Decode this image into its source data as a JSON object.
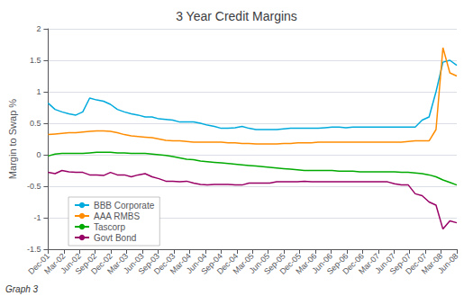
{
  "chart_data": {
    "type": "line",
    "title": "3 Year Credit Margins",
    "ylabel": "Margin to Swap %",
    "annotations": [
      "Graph 3"
    ],
    "x": [
      0,
      0.4407,
      0.8814,
      1.322,
      1.7627,
      2.2034,
      2.6441,
      3.0847,
      3.5254,
      3.9661,
      4.4068,
      4.8475,
      5.2881,
      5.7288,
      6.1695,
      6.6102,
      7.0508,
      7.4915,
      7.9322,
      8.3729,
      8.8136,
      9.2542,
      9.6949,
      10.1356,
      10.5763,
      11.0169,
      11.4576,
      11.8983,
      12.339,
      12.7797,
      13.2203,
      13.661,
      14.1017,
      14.5424,
      14.9831,
      15.4237,
      15.8644,
      16.3051,
      16.7458,
      17.1864,
      17.6271,
      18.0678,
      18.5085,
      18.9492,
      19.3898,
      19.8305,
      20.2712,
      20.7119,
      21.1525,
      21.5932,
      22.0339,
      22.4746,
      22.9153,
      23.3559,
      23.7966,
      24.2373,
      24.678,
      25.1186,
      25.5593,
      26
    ],
    "xlim": [
      0,
      26
    ],
    "xticks": [
      {
        "value": 0,
        "label": "Dec-01"
      },
      {
        "value": 1,
        "label": "Mar-02"
      },
      {
        "value": 2,
        "label": "Jun-02"
      },
      {
        "value": 3,
        "label": "Sep-02"
      },
      {
        "value": 4,
        "label": "Dec-02"
      },
      {
        "value": 5,
        "label": "Mar-03"
      },
      {
        "value": 6,
        "label": "Jun-03"
      },
      {
        "value": 7,
        "label": "Sep-03"
      },
      {
        "value": 8,
        "label": "Dec-03"
      },
      {
        "value": 9,
        "label": "Mar-04"
      },
      {
        "value": 10,
        "label": "Jun-04"
      },
      {
        "value": 11,
        "label": "Sep-04"
      },
      {
        "value": 12,
        "label": "Dec-04"
      },
      {
        "value": 13,
        "label": "Mar-05"
      },
      {
        "value": 14,
        "label": "Jun-05"
      },
      {
        "value": 15,
        "label": "Sep-05"
      },
      {
        "value": 16,
        "label": "Dec-05"
      },
      {
        "value": 17,
        "label": "Mar-06"
      },
      {
        "value": 18,
        "label": "Jun-06"
      },
      {
        "value": 19,
        "label": "Sep-06"
      },
      {
        "value": 20,
        "label": "Dec-06"
      },
      {
        "value": 21,
        "label": "Mar-07"
      },
      {
        "value": 22,
        "label": "Jun-07"
      },
      {
        "value": 23,
        "label": "Sep-07"
      },
      {
        "value": 24,
        "label": "Dec-07"
      },
      {
        "value": 25,
        "label": "Mar-08"
      },
      {
        "value": 26,
        "label": "Jun-08"
      }
    ],
    "ylim": [
      -1.5,
      2
    ],
    "yticks": [
      -1.5,
      -1,
      -0.5,
      0,
      0.5,
      1,
      1.5,
      2
    ],
    "grid": true,
    "legend": "lower left",
    "series": [
      {
        "name": "BBB Corporate",
        "color": "#00AADD",
        "values": [
          0.82,
          0.72,
          0.68,
          0.65,
          0.63,
          0.68,
          0.9,
          0.87,
          0.85,
          0.8,
          0.72,
          0.68,
          0.65,
          0.63,
          0.6,
          0.6,
          0.57,
          0.56,
          0.55,
          0.52,
          0.52,
          0.52,
          0.5,
          0.47,
          0.45,
          0.42,
          0.42,
          0.43,
          0.45,
          0.42,
          0.4,
          0.4,
          0.4,
          0.4,
          0.41,
          0.42,
          0.42,
          0.42,
          0.42,
          0.42,
          0.43,
          0.44,
          0.44,
          0.43,
          0.44,
          0.44,
          0.44,
          0.44,
          0.44,
          0.44,
          0.44,
          0.44,
          0.44,
          0.44,
          0.55,
          0.6,
          1.0,
          1.47,
          1.5,
          1.42
        ]
      },
      {
        "name": "AAA RMBS",
        "color": "#FF8C00",
        "values": [
          0.32,
          0.33,
          0.34,
          0.35,
          0.35,
          0.36,
          0.37,
          0.38,
          0.38,
          0.37,
          0.35,
          0.32,
          0.3,
          0.29,
          0.28,
          0.27,
          0.25,
          0.23,
          0.22,
          0.22,
          0.21,
          0.2,
          0.2,
          0.2,
          0.2,
          0.2,
          0.19,
          0.19,
          0.18,
          0.18,
          0.17,
          0.17,
          0.17,
          0.17,
          0.18,
          0.18,
          0.19,
          0.19,
          0.19,
          0.2,
          0.2,
          0.2,
          0.2,
          0.2,
          0.2,
          0.2,
          0.2,
          0.2,
          0.2,
          0.2,
          0.2,
          0.2,
          0.21,
          0.22,
          0.22,
          0.22,
          0.4,
          1.7,
          1.3,
          1.25
        ]
      },
      {
        "name": "Tascorp",
        "color": "#00AA00",
        "values": [
          -0.02,
          0.01,
          0.02,
          0.02,
          0.02,
          0.02,
          0.03,
          0.04,
          0.04,
          0.04,
          0.03,
          0.03,
          0.02,
          0.02,
          0.02,
          0.01,
          0.0,
          -0.01,
          -0.03,
          -0.05,
          -0.07,
          -0.08,
          -0.1,
          -0.11,
          -0.12,
          -0.13,
          -0.14,
          -0.15,
          -0.16,
          -0.17,
          -0.18,
          -0.19,
          -0.2,
          -0.21,
          -0.22,
          -0.23,
          -0.24,
          -0.25,
          -0.25,
          -0.25,
          -0.25,
          -0.25,
          -0.26,
          -0.26,
          -0.26,
          -0.27,
          -0.27,
          -0.27,
          -0.27,
          -0.27,
          -0.27,
          -0.28,
          -0.28,
          -0.29,
          -0.3,
          -0.32,
          -0.35,
          -0.4,
          -0.44,
          -0.48
        ]
      },
      {
        "name": "Govt Bond",
        "color": "#990066",
        "values": [
          -0.28,
          -0.3,
          -0.25,
          -0.27,
          -0.28,
          -0.28,
          -0.32,
          -0.32,
          -0.33,
          -0.28,
          -0.32,
          -0.32,
          -0.35,
          -0.32,
          -0.3,
          -0.35,
          -0.38,
          -0.42,
          -0.42,
          -0.43,
          -0.42,
          -0.45,
          -0.47,
          -0.48,
          -0.47,
          -0.47,
          -0.47,
          -0.48,
          -0.48,
          -0.45,
          -0.45,
          -0.45,
          -0.45,
          -0.43,
          -0.43,
          -0.43,
          -0.43,
          -0.42,
          -0.43,
          -0.43,
          -0.43,
          -0.43,
          -0.43,
          -0.43,
          -0.43,
          -0.43,
          -0.43,
          -0.43,
          -0.43,
          -0.43,
          -0.46,
          -0.48,
          -0.48,
          -0.62,
          -0.65,
          -0.75,
          -0.8,
          -1.18,
          -1.05,
          -1.08
        ]
      }
    ]
  }
}
